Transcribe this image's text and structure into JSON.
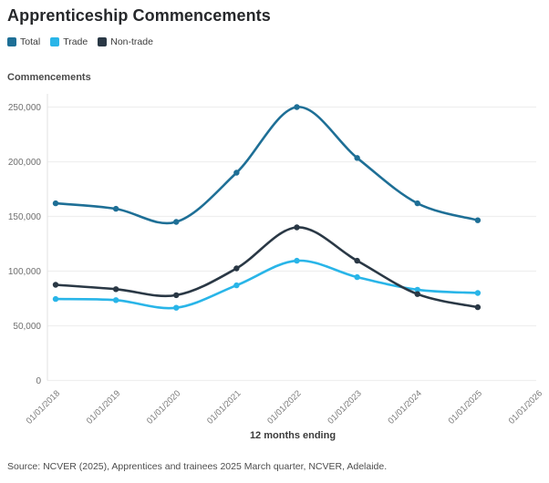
{
  "page": {
    "title": "Apprenticeship Commencements"
  },
  "legend": {
    "items": [
      {
        "label": "Total",
        "color": "#1e6f96"
      },
      {
        "label": "Trade",
        "color": "#29b5e8"
      },
      {
        "label": "Non-trade",
        "color": "#2a3845"
      }
    ]
  },
  "axes": {
    "y_title": "Commencements",
    "x_title": "12 months ending"
  },
  "source": "Source: NCVER (2025), Apprentices and trainees 2025 March quarter, NCVER, Adelaide.",
  "chart_data": {
    "type": "line",
    "title": "Apprenticeship Commencements",
    "xlabel": "12 months ending",
    "ylabel": "Commencements",
    "categories": [
      "01/01/2018",
      "01/01/2019",
      "01/01/2020",
      "01/01/2021",
      "01/01/2022",
      "01/01/2023",
      "01/01/2024",
      "01/01/2025",
      "01/01/2026"
    ],
    "series": [
      {
        "name": "Total",
        "color": "#1e6f96",
        "values": [
          162000,
          157000,
          145000,
          190000,
          250000,
          203500,
          162000,
          146500,
          null
        ]
      },
      {
        "name": "Trade",
        "color": "#29b5e8",
        "values": [
          74500,
          73500,
          66500,
          87000,
          109500,
          94500,
          83000,
          80000,
          null
        ]
      },
      {
        "name": "Non-trade",
        "color": "#2a3845",
        "values": [
          87500,
          83500,
          78000,
          102500,
          140000,
          109500,
          79000,
          67000,
          null
        ]
      }
    ],
    "ylim": [
      0,
      250000
    ],
    "y_ticks": [
      0,
      50000,
      100000,
      150000,
      200000,
      250000
    ],
    "grid": true,
    "legend_position": "top-left",
    "marker": "circle",
    "line_shape": "spline",
    "colors": {
      "gridline": "#efefef",
      "axis_line": "#e6e6e6",
      "tick_label": "#6f6f6f"
    }
  }
}
